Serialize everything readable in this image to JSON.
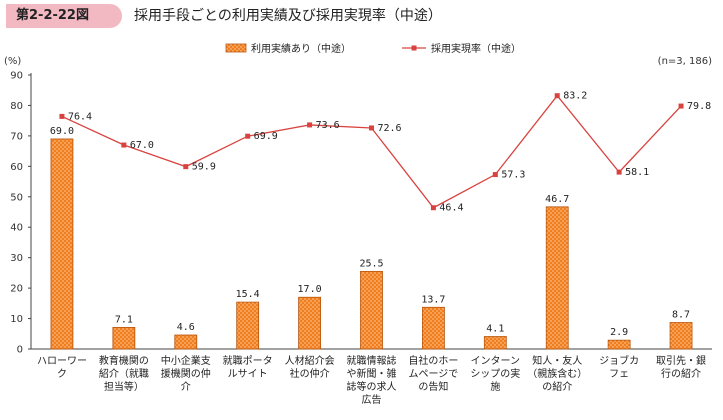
{
  "figure": {
    "number": "第2-2-22図",
    "title": "採用手段ごとの利用実績及び採用実現率（中途）"
  },
  "chart_data": {
    "type": "bar",
    "ylabel": "(%)",
    "note": "(n=3, 186)",
    "ylim": [
      0,
      90
    ],
    "yticks": [
      "0",
      "10",
      "20",
      "30",
      "40",
      "50",
      "60",
      "70",
      "80",
      "90"
    ],
    "categories": [
      [
        "ハローワー",
        "ク"
      ],
      [
        "教育機関の",
        "紹介（就職",
        "担当等）"
      ],
      [
        "中小企業支",
        "援機関の仲",
        "介"
      ],
      [
        "就職ポータ",
        "ルサイト"
      ],
      [
        "人材紹介会",
        "社の仲介"
      ],
      [
        "就職情報誌",
        "や新聞・雑",
        "誌等の求人",
        "広告"
      ],
      [
        "自社のホー",
        "ムページで",
        "の告知"
      ],
      [
        "インターン",
        "シップの実",
        "施"
      ],
      [
        "知人・友人",
        "（親族含む）",
        "の紹介"
      ],
      [
        "ジョブカ",
        "フェ"
      ],
      [
        "取引先・銀",
        "行の紹介"
      ]
    ],
    "series": [
      {
        "name": "利用実績あり（中途）",
        "kind": "bar",
        "color": "#f07d1e",
        "values": [
          69.0,
          7.1,
          4.6,
          15.4,
          17.0,
          25.5,
          13.7,
          4.1,
          46.7,
          2.9,
          8.7
        ],
        "labels": [
          "69.0",
          "7.1",
          "4.6",
          "15.4",
          "17.0",
          "25.5",
          "13.7",
          "4.1",
          "46.7",
          "2.9",
          "8.7"
        ]
      },
      {
        "name": "採用実現率（中途）",
        "kind": "line",
        "color": "#d9433f",
        "values": [
          76.4,
          67.0,
          59.9,
          69.9,
          73.6,
          72.6,
          46.4,
          57.3,
          83.2,
          58.1,
          79.8
        ],
        "labels": [
          "76.4",
          "67.0",
          "59.9",
          "69.9",
          "73.6",
          "72.6",
          "46.4",
          "57.3",
          "83.2",
          "58.1",
          "79.8"
        ]
      }
    ],
    "legend_position": "top-center",
    "grid": false
  }
}
